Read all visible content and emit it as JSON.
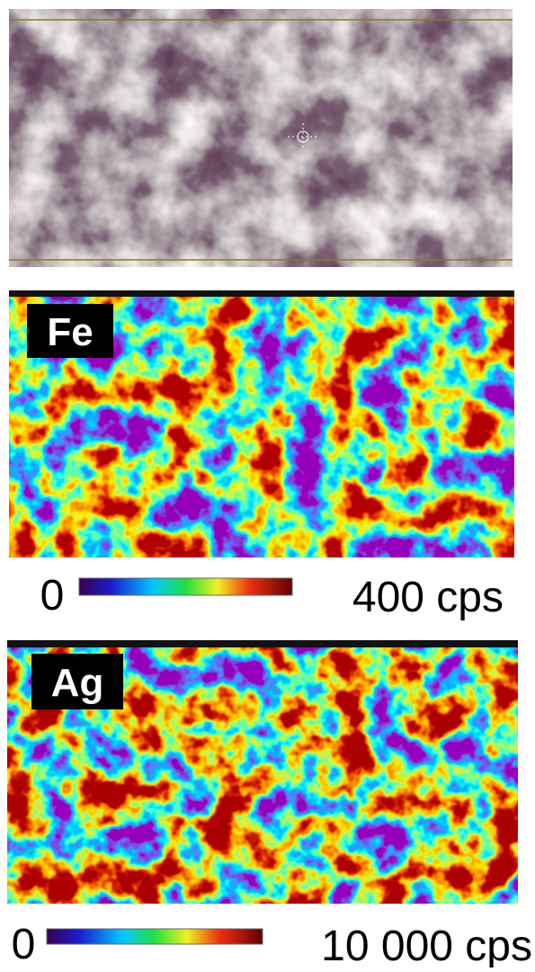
{
  "panels": [
    {
      "label": "Fe",
      "scale": {
        "min": "0",
        "max": "400 cps"
      }
    },
    {
      "label": "Ag",
      "scale": {
        "min": "0",
        "max": "10 000 cps"
      }
    }
  ]
}
